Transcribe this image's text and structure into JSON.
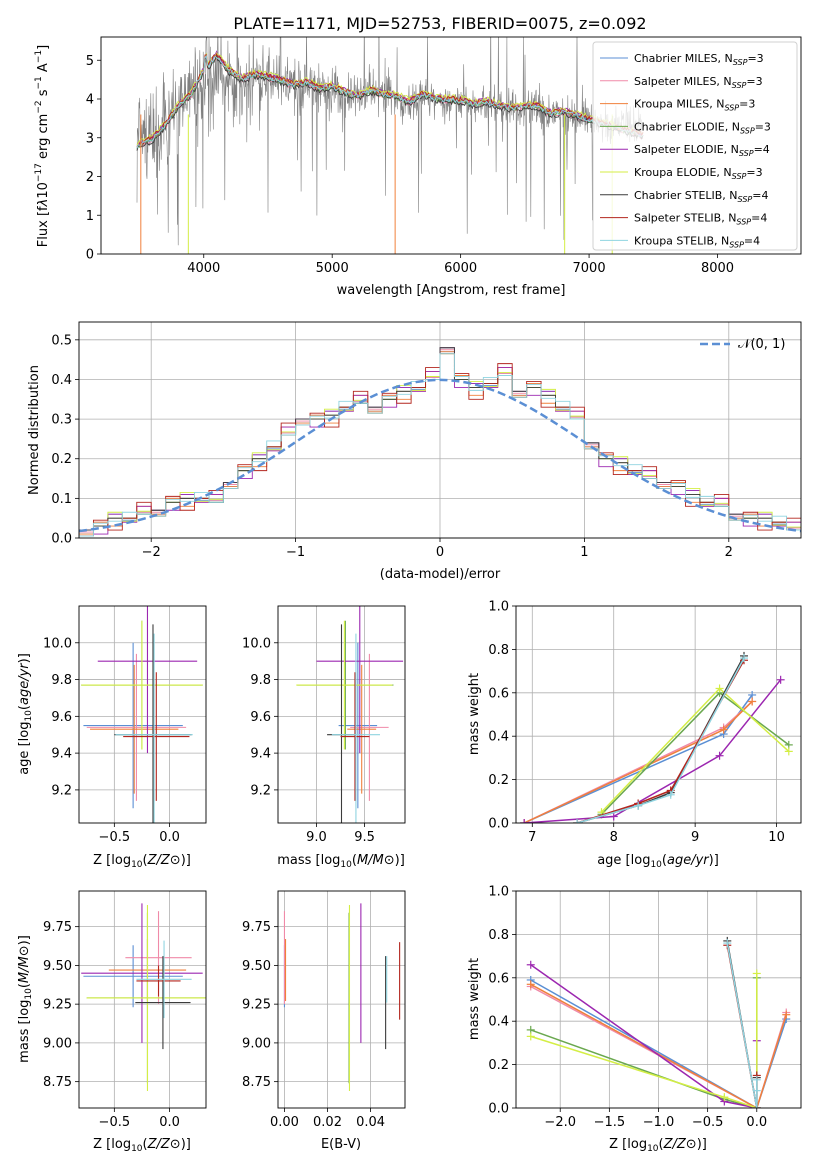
{
  "figure_title": "PLATE=1171, MJD=52753, FIBERID=0075, z=0.092",
  "colors": {
    "chabrier_miles": "#5b8fd4",
    "salpeter_miles": "#f08aa8",
    "kroupa_miles": "#f0803c",
    "chabrier_elodie": "#6aa84f",
    "salpeter_elodie": "#9c27b0",
    "kroupa_elodie": "#d4ee45",
    "chabrier_stelib": "#3c3c3c",
    "salpeter_stelib": "#b3261e",
    "kroupa_stelib": "#8fd4e0",
    "data": "#808080",
    "gaussian": "#5b8fd4"
  },
  "chart_data": [
    {
      "id": "spectrum",
      "type": "line",
      "xlabel": "wavelength [Angstrom, rest frame]",
      "ylabel_html": "Flux [f<tspan font-style='italic'>λ</tspan>10<tspan dy='-6' font-size='9'>−17</tspan><tspan dy='6'> erg cm</tspan><tspan dy='-6' font-size='9'>−2</tspan><tspan dy='6'> s</tspan><tspan dy='-6' font-size='9'>−1</tspan><tspan dy='6'> A</tspan><tspan dy='-6' font-size='9'>−1</tspan><tspan dy='6'>]</tspan>",
      "xlim": [
        3200,
        8650
      ],
      "ylim": [
        0,
        5.6
      ],
      "xticks": [
        4000,
        5000,
        6000,
        7000,
        8000
      ],
      "yticks": [
        0,
        1,
        2,
        3,
        4,
        5
      ],
      "grid": false,
      "legend_position": "upper-right",
      "legend": [
        "Chabrier MILES, N_SSP=3",
        "Salpeter MILES, N_SSP=3",
        "Kroupa MILES, N_SSP=3",
        "Chabrier ELODIE, N_SSP=3",
        "Salpeter ELODIE, N_SSP=4",
        "Kroupa ELODIE, N_SSP=3",
        "Chabrier STELIB, N_SSP=4",
        "Salpeter STELIB, N_SSP=4",
        "Kroupa STELIB, N_SSP=4"
      ],
      "data_series": {
        "name": "data",
        "x": [
          3480,
          3550,
          3700,
          3800,
          3900,
          4000,
          4100,
          4200,
          4300,
          4400,
          4500,
          4600,
          4700,
          4800,
          4900,
          5000,
          5100,
          5200,
          5300,
          5400,
          5500,
          5600,
          5700,
          5800,
          5900,
          6000,
          6100,
          6200,
          6300,
          6400,
          6500,
          6600,
          6700,
          6800,
          6900,
          7000,
          7100,
          7200,
          7300,
          7400
        ],
        "y": [
          2.8,
          2.9,
          3.3,
          3.7,
          4.0,
          4.4,
          4.7,
          4.5,
          4.3,
          4.6,
          4.5,
          4.4,
          4.3,
          4.4,
          4.2,
          4.2,
          4.1,
          4.0,
          4.2,
          4.1,
          4.0,
          3.8,
          4.1,
          4.0,
          3.9,
          3.9,
          3.8,
          3.9,
          3.8,
          3.7,
          3.8,
          3.8,
          3.6,
          3.6,
          3.5,
          3.5,
          3.4,
          3.3,
          3.3,
          3.2
        ]
      },
      "model_x": [
        3470,
        3500,
        3600,
        3700,
        3800,
        3900,
        4000,
        4100,
        4200,
        4300,
        4400,
        4500,
        4600,
        4700,
        4800,
        4900,
        5000,
        5100,
        5200,
        5300,
        5400,
        5500,
        5600,
        5700,
        5800,
        5900,
        6000,
        6100,
        6200,
        6300,
        6400,
        6500,
        6600,
        6700,
        6800,
        6900,
        7000,
        7100,
        7200,
        7300,
        7400
      ],
      "model_y": [
        2.75,
        2.8,
        2.95,
        3.3,
        3.8,
        4.1,
        4.7,
        5.1,
        4.7,
        4.5,
        4.6,
        4.55,
        4.45,
        4.35,
        4.4,
        4.25,
        4.3,
        4.15,
        4.05,
        4.2,
        4.1,
        4.05,
        3.9,
        4.1,
        4.0,
        3.95,
        3.95,
        3.85,
        3.9,
        3.8,
        3.75,
        3.8,
        3.8,
        3.6,
        3.65,
        3.55,
        3.45,
        3.35,
        3.25,
        3.15,
        3.05
      ],
      "model_offsets": [
        0.03,
        -0.02,
        0.05,
        0.0,
        0.08,
        0.1,
        -0.04,
        0.06,
        0.02
      ]
    },
    {
      "id": "residuals",
      "type": "line",
      "xlabel": "(data-model)/error",
      "ylabel": "Normed distribution",
      "xlim": [
        -2.5,
        2.5
      ],
      "ylim": [
        0,
        0.545
      ],
      "xticks": [
        -2,
        -1,
        0,
        1,
        2
      ],
      "xtick_labels": [
        "−2",
        "−1",
        "0",
        "1",
        "2"
      ],
      "yticks": [
        0.0,
        0.1,
        0.2,
        0.3,
        0.4,
        0.5
      ],
      "ytick_labels": [
        "0.0",
        "0.1",
        "0.2",
        "0.3",
        "0.4",
        "0.5"
      ],
      "grid": true,
      "legend_position": "upper-right",
      "legend_label": "𝒩(0, 1)",
      "hist_centers": [
        -2.45,
        -2.35,
        -2.25,
        -2.15,
        -2.05,
        -1.95,
        -1.85,
        -1.75,
        -1.65,
        -1.55,
        -1.45,
        -1.35,
        -1.25,
        -1.15,
        -1.05,
        -0.95,
        -0.85,
        -0.75,
        -0.65,
        -0.55,
        -0.45,
        -0.35,
        -0.25,
        -0.15,
        -0.05,
        0.05,
        0.15,
        0.25,
        0.35,
        0.45,
        0.55,
        0.65,
        0.75,
        0.85,
        0.95,
        1.05,
        1.15,
        1.25,
        1.35,
        1.45,
        1.55,
        1.65,
        1.75,
        1.85,
        1.95,
        2.05,
        2.15,
        2.25,
        2.35,
        2.45
      ],
      "hist_values": [
        0.02,
        0.03,
        0.05,
        0.05,
        0.06,
        0.07,
        0.09,
        0.1,
        0.1,
        0.09,
        0.14,
        0.17,
        0.2,
        0.23,
        0.26,
        0.3,
        0.3,
        0.31,
        0.33,
        0.34,
        0.33,
        0.35,
        0.37,
        0.38,
        0.4,
        0.48,
        0.4,
        0.38,
        0.39,
        0.41,
        0.37,
        0.38,
        0.36,
        0.33,
        0.3,
        0.24,
        0.2,
        0.19,
        0.17,
        0.15,
        0.14,
        0.13,
        0.11,
        0.09,
        0.08,
        0.06,
        0.05,
        0.05,
        0.04,
        0.02
      ],
      "hist_jitter": [
        0.01,
        -0.01,
        0.02,
        0.0,
        -0.02,
        0.015,
        0.0,
        0.03,
        -0.015
      ]
    },
    {
      "id": "age_vs_z",
      "type": "scatter",
      "xlabel": "Z [log10(Z/Z⊙)]",
      "ylabel": "age  [log10(age/yr)]",
      "xlim": [
        -0.82,
        0.33
      ],
      "ylim": [
        9.02,
        10.2
      ],
      "xticks": [
        -0.5,
        0.0
      ],
      "xtick_labels": [
        "−0.5",
        "0.0"
      ],
      "yticks": [
        9.2,
        9.4,
        9.6,
        9.8,
        10.0
      ],
      "ytick_labels": [
        "9.2",
        "9.4",
        "9.6",
        "9.8",
        "10.0"
      ],
      "grid": true,
      "crosses": [
        {
          "model": "chabrier_miles",
          "x": -0.33,
          "xerr": 0.45,
          "y": 9.55,
          "yerr": 0.45
        },
        {
          "model": "salpeter_miles",
          "x": -0.3,
          "xerr": 0.45,
          "y": 9.54,
          "yerr": 0.4
        },
        {
          "model": "kroupa_miles",
          "x": -0.32,
          "xerr": 0.4,
          "y": 9.53,
          "yerr": 0.35
        },
        {
          "model": "chabrier_elodie",
          "x": -0.25,
          "xerr": 0.55,
          "y": 9.77,
          "yerr": 0.35
        },
        {
          "model": "salpeter_elodie",
          "x": -0.2,
          "xerr": 0.45,
          "y": 9.9,
          "yerr": 0.5
        },
        {
          "model": "kroupa_elodie",
          "x": -0.25,
          "xerr": 0.55,
          "y": 9.77,
          "yerr": 0.35
        },
        {
          "model": "chabrier_stelib",
          "x": -0.15,
          "xerr": 0.35,
          "y": 9.5,
          "yerr": 0.6
        },
        {
          "model": "salpeter_stelib",
          "x": -0.12,
          "xerr": 0.3,
          "y": 9.49,
          "yerr": 0.35
        },
        {
          "model": "kroupa_stelib",
          "x": -0.14,
          "xerr": 0.35,
          "y": 9.5,
          "yerr": 0.55
        }
      ]
    },
    {
      "id": "age_vs_mass",
      "type": "scatter",
      "xlabel": "mass [log10(M/M⊙)]",
      "xlim": [
        8.6,
        9.92
      ],
      "ylim": [
        9.02,
        10.2
      ],
      "xticks": [
        9.0,
        9.5
      ],
      "xtick_labels": [
        "9.0",
        "9.5"
      ],
      "yticks": [
        9.2,
        9.4,
        9.6,
        9.8,
        10.0
      ],
      "ytick_labels": [
        "9.2",
        "9.4",
        "9.6",
        "9.8",
        "10.0"
      ],
      "grid": true,
      "crosses": [
        {
          "model": "chabrier_miles",
          "x": 9.43,
          "xerr": 0.2,
          "y": 9.55,
          "yerr": 0.45
        },
        {
          "model": "salpeter_miles",
          "x": 9.55,
          "xerr": 0.2,
          "y": 9.54,
          "yerr": 0.4
        },
        {
          "model": "kroupa_miles",
          "x": 9.47,
          "xerr": 0.15,
          "y": 9.53,
          "yerr": 0.35
        },
        {
          "model": "chabrier_elodie",
          "x": 9.3,
          "xerr": 0.5,
          "y": 9.77,
          "yerr": 0.35
        },
        {
          "model": "salpeter_elodie",
          "x": 9.45,
          "xerr": 0.45,
          "y": 9.9,
          "yerr": 0.5
        },
        {
          "model": "kroupa_elodie",
          "x": 9.29,
          "xerr": 0.5,
          "y": 9.77,
          "yerr": 0.35
        },
        {
          "model": "chabrier_stelib",
          "x": 9.26,
          "xerr": 0.15,
          "y": 9.5,
          "yerr": 0.6
        },
        {
          "model": "salpeter_stelib",
          "x": 9.4,
          "xerr": 0.15,
          "y": 9.49,
          "yerr": 0.35
        },
        {
          "model": "kroupa_stelib",
          "x": 9.41,
          "xerr": 0.25,
          "y": 9.5,
          "yerr": 0.55
        }
      ]
    },
    {
      "id": "weight_vs_age",
      "type": "line",
      "xlabel": "age  [log10(age/yr)]",
      "ylabel": "mass weight",
      "xlim": [
        6.8,
        10.3
      ],
      "ylim": [
        0,
        1.0
      ],
      "xticks": [
        7,
        8,
        9,
        10
      ],
      "yticks": [
        0.0,
        0.2,
        0.4,
        0.6,
        0.8,
        1.0
      ],
      "ytick_labels": [
        "0.0",
        "0.2",
        "0.4",
        "0.6",
        "0.8",
        "1.0"
      ],
      "grid": true,
      "series": [
        {
          "model": "chabrier_miles",
          "x": [
            6.9,
            9.35,
            9.7
          ],
          "y": [
            0.0,
            0.41,
            0.59
          ]
        },
        {
          "model": "salpeter_miles",
          "x": [
            6.9,
            9.35,
            9.7
          ],
          "y": [
            0.0,
            0.44,
            0.56
          ]
        },
        {
          "model": "kroupa_miles",
          "x": [
            6.9,
            9.35,
            9.7
          ],
          "y": [
            0.0,
            0.43,
            0.56
          ]
        },
        {
          "model": "chabrier_elodie",
          "x": [
            7.85,
            9.3,
            10.15
          ],
          "y": [
            0.04,
            0.6,
            0.36
          ]
        },
        {
          "model": "salpeter_elodie",
          "x": [
            6.9,
            8.0,
            9.3,
            10.05
          ],
          "y": [
            0.0,
            0.03,
            0.31,
            0.66
          ]
        },
        {
          "model": "kroupa_elodie",
          "x": [
            7.85,
            9.3,
            10.15
          ],
          "y": [
            0.05,
            0.62,
            0.33
          ]
        },
        {
          "model": "chabrier_stelib",
          "x": [
            7.55,
            8.3,
            8.7,
            9.6
          ],
          "y": [
            0.0,
            0.08,
            0.14,
            0.77
          ]
        },
        {
          "model": "salpeter_stelib",
          "x": [
            7.55,
            8.3,
            8.7,
            9.6
          ],
          "y": [
            0.0,
            0.09,
            0.15,
            0.75
          ]
        },
        {
          "model": "kroupa_stelib",
          "x": [
            7.55,
            8.3,
            8.7,
            9.6
          ],
          "y": [
            0.0,
            0.08,
            0.13,
            0.76
          ]
        }
      ]
    },
    {
      "id": "mass_vs_z",
      "type": "scatter",
      "xlabel": "Z [log10(Z/Z⊙)]",
      "ylabel": "mass [log10(M/M⊙)]",
      "xlim": [
        -0.82,
        0.33
      ],
      "ylim": [
        8.58,
        9.98
      ],
      "xticks": [
        -0.5,
        0.0
      ],
      "xtick_labels": [
        "−0.5",
        "0.0"
      ],
      "yticks": [
        8.75,
        9.0,
        9.25,
        9.5,
        9.75
      ],
      "ytick_labels": [
        "8.75",
        "9.00",
        "9.25",
        "9.50",
        "9.75"
      ],
      "grid": true,
      "crosses": [
        {
          "model": "chabrier_miles",
          "x": -0.33,
          "xerr": 0.45,
          "y": 9.43,
          "yerr": 0.2
        },
        {
          "model": "salpeter_miles",
          "x": -0.1,
          "xerr": 0.3,
          "y": 9.55,
          "yerr": 0.3
        },
        {
          "model": "kroupa_miles",
          "x": -0.2,
          "xerr": 0.35,
          "y": 9.47,
          "yerr": 0.2
        },
        {
          "model": "chabrier_elodie",
          "x": -0.2,
          "xerr": 0.55,
          "y": 9.29,
          "yerr": 0.55
        },
        {
          "model": "salpeter_elodie",
          "x": -0.25,
          "xerr": 0.55,
          "y": 9.45,
          "yerr": 0.45
        },
        {
          "model": "kroupa_elodie",
          "x": -0.2,
          "xerr": 0.55,
          "y": 9.29,
          "yerr": 0.6
        },
        {
          "model": "chabrier_stelib",
          "x": -0.06,
          "xerr": 0.25,
          "y": 9.26,
          "yerr": 0.3
        },
        {
          "model": "salpeter_stelib",
          "x": -0.1,
          "xerr": 0.2,
          "y": 9.4,
          "yerr": 0.1
        },
        {
          "model": "kroupa_stelib",
          "x": -0.05,
          "xerr": 0.25,
          "y": 9.41,
          "yerr": 0.25
        }
      ]
    },
    {
      "id": "mass_vs_ebv",
      "type": "scatter",
      "xlabel": "E(B-V)",
      "xlim": [
        -0.003,
        0.056
      ],
      "ylim": [
        8.58,
        9.98
      ],
      "xticks": [
        0.0,
        0.02,
        0.04
      ],
      "xtick_labels": [
        "0.00",
        "0.02",
        "0.04"
      ],
      "yticks": [
        8.75,
        9.0,
        9.25,
        9.5,
        9.75
      ],
      "ytick_labels": [
        "8.75",
        "9.00",
        "9.25",
        "9.50",
        "9.75"
      ],
      "grid": true,
      "crosses": [
        {
          "model": "chabrier_miles",
          "x": 0.0,
          "xerr": 0.0,
          "y": 9.43,
          "yerr": 0.2
        },
        {
          "model": "salpeter_miles",
          "x": 0.0,
          "xerr": 0.0,
          "y": 9.55,
          "yerr": 0.3
        },
        {
          "model": "kroupa_miles",
          "x": 0.0005,
          "xerr": 0.0,
          "y": 9.47,
          "yerr": 0.2
        },
        {
          "model": "chabrier_elodie",
          "x": 0.03,
          "xerr": 0.0,
          "y": 9.29,
          "yerr": 0.55
        },
        {
          "model": "salpeter_elodie",
          "x": 0.0355,
          "xerr": 0.0,
          "y": 9.45,
          "yerr": 0.45
        },
        {
          "model": "kroupa_elodie",
          "x": 0.0302,
          "xerr": 0.0,
          "y": 9.29,
          "yerr": 0.6
        },
        {
          "model": "chabrier_stelib",
          "x": 0.047,
          "xerr": 0.0,
          "y": 9.26,
          "yerr": 0.3
        },
        {
          "model": "salpeter_stelib",
          "x": 0.0535,
          "xerr": 0.0,
          "y": 9.4,
          "yerr": 0.25
        },
        {
          "model": "kroupa_stelib",
          "x": 0.0475,
          "xerr": 0.0,
          "y": 9.41,
          "yerr": 0.15
        }
      ]
    },
    {
      "id": "weight_vs_z",
      "type": "line",
      "xlabel": "Z [log10(Z/Z⊙)]",
      "ylabel": "mass weight",
      "xlim": [
        -2.45,
        0.45
      ],
      "ylim": [
        0,
        1.0
      ],
      "xticks": [
        -2.0,
        -1.5,
        -1.0,
        -0.5,
        0.0
      ],
      "xtick_labels": [
        "−2.0",
        "−1.5",
        "−1.0",
        "−0.5",
        "0.0"
      ],
      "yticks": [
        0.0,
        0.2,
        0.4,
        0.6,
        0.8,
        1.0
      ],
      "ytick_labels": [
        "0.0",
        "0.2",
        "0.4",
        "0.6",
        "0.8",
        "1.0"
      ],
      "grid": true,
      "series": [
        {
          "model": "chabrier_miles",
          "x": [
            -2.3,
            0.0,
            0.3
          ],
          "y": [
            0.59,
            0.0,
            0.41
          ]
        },
        {
          "model": "salpeter_miles",
          "x": [
            -2.3,
            0.0,
            0.3
          ],
          "y": [
            0.56,
            0.0,
            0.44
          ]
        },
        {
          "model": "kroupa_miles",
          "x": [
            -2.3,
            0.0,
            0.3
          ],
          "y": [
            0.57,
            0.0,
            0.43
          ]
        },
        {
          "model": "chabrier_elodie",
          "x": [
            -2.3,
            -0.33,
            0.0,
            0.0
          ],
          "y": [
            0.36,
            0.04,
            0.0,
            0.6
          ]
        },
        {
          "model": "salpeter_elodie",
          "x": [
            -2.3,
            -0.33,
            0.0,
            0.0
          ],
          "y": [
            0.66,
            0.03,
            0.0,
            0.31
          ]
        },
        {
          "model": "kroupa_elodie",
          "x": [
            -2.3,
            -0.33,
            0.0,
            0.0
          ],
          "y": [
            0.33,
            0.05,
            0.0,
            0.62
          ]
        },
        {
          "model": "chabrier_stelib",
          "x": [
            -0.3,
            0.0,
            0.0
          ],
          "y": [
            0.77,
            0.0,
            0.14
          ]
        },
        {
          "model": "salpeter_stelib",
          "x": [
            -0.3,
            0.0,
            0.0
          ],
          "y": [
            0.75,
            0.0,
            0.15
          ]
        },
        {
          "model": "kroupa_stelib",
          "x": [
            -0.3,
            0.0,
            0.0,
            0.0
          ],
          "y": [
            0.76,
            0.0,
            0.08,
            0.13
          ]
        }
      ]
    }
  ]
}
